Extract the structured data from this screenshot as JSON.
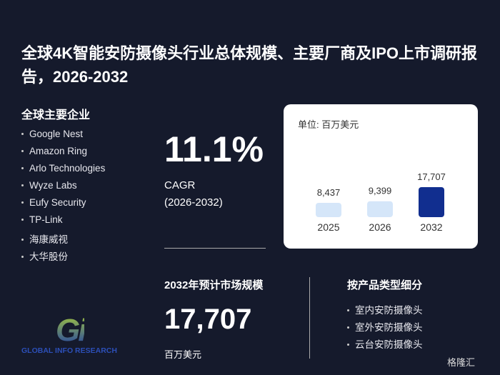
{
  "title": "全球4K智能安防摄像头行业总体规模、主要厂商及IPO上市调研报告，2026-2032",
  "companies": {
    "heading": "全球主要企业",
    "items": [
      "Google Nest",
      "Amazon Ring",
      "Arlo Technologies",
      "Wyze Labs",
      "Eufy Security",
      "TP-Link",
      "海康威视",
      "大华股份"
    ]
  },
  "cagr": {
    "value": "11.1%",
    "label": "CAGR",
    "period": "(2026-2032)"
  },
  "market": {
    "heading": "2032年预计市场规模",
    "value": "17,707",
    "unit": "百万美元"
  },
  "segments": {
    "heading": "按产品类型细分",
    "items": [
      "室内安防摄像头",
      "室外安防摄像头",
      "云台安防摄像头"
    ]
  },
  "logo": {
    "mark": "Gi",
    "text": "GLOBAL INFO RESEARCH"
  },
  "watermark": "格隆汇",
  "chart_data": {
    "type": "bar",
    "unit_label": "单位: 百万美元",
    "categories": [
      "2025",
      "2026",
      "2032"
    ],
    "values": [
      8437,
      9399,
      17707
    ],
    "value_labels": [
      "8,437",
      "9,399",
      "17,707"
    ],
    "colors": [
      "#d5e6f9",
      "#d5e6f9",
      "#112e8f"
    ]
  }
}
